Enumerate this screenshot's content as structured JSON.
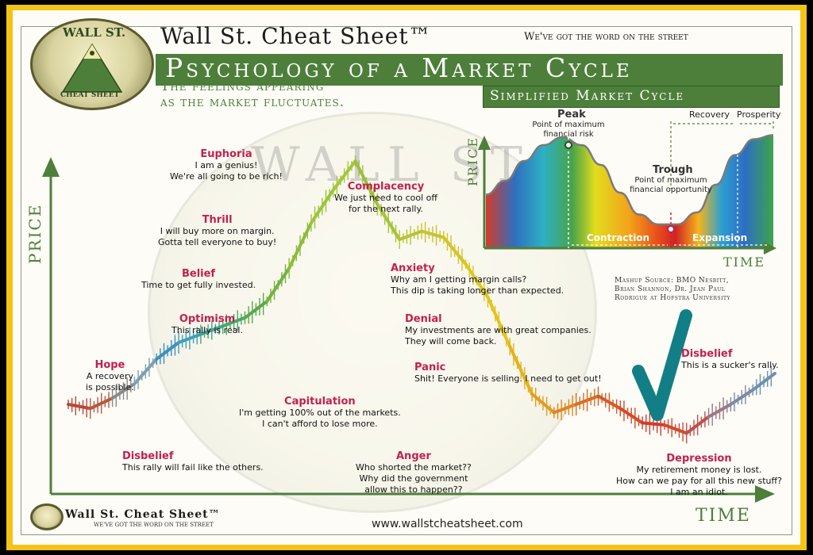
{
  "header": {
    "brand": "Wall St. Cheat Sheet™",
    "tagline": "We've got the word on the street",
    "title": "Psychology of a Market Cycle",
    "subtitle_line1": "The feelings appearing",
    "subtitle_line2": "as the market fluctuates.",
    "seal_top": "WALL ST.",
    "seal_bottom": "CHEAT SHEET"
  },
  "footer": {
    "brand": "Wall St. Cheat Sheet™",
    "tagline": "We've got the word on the street",
    "url": "www.wallstcheatsheet.com"
  },
  "watermark": {
    "text": "WALL ST."
  },
  "credit": {
    "line1": "Mashup Source: BMO Nesbitt,",
    "line2": "Brian Shannon, Dr. Jean Paul",
    "line3": "Rodrigue at Hofstra University"
  },
  "colors": {
    "brand_green": "#4d7f3a",
    "stage_title": "#c31f4f",
    "frame_yellow": "#f2c417",
    "checkmark": "#127f86"
  },
  "chart_data": [
    {
      "type": "line",
      "xlabel": "Time",
      "ylabel": "Price",
      "stages": [
        {
          "name": "Disbelief",
          "lines": [
            "This rally will fail like the others."
          ]
        },
        {
          "name": "Hope",
          "lines": [
            "A recovery",
            "is possible."
          ]
        },
        {
          "name": "Optimism",
          "lines": [
            "This rally is real."
          ]
        },
        {
          "name": "Belief",
          "lines": [
            "Time to get fully invested."
          ]
        },
        {
          "name": "Thrill",
          "lines": [
            "I will buy more on margin.",
            "Gotta tell everyone to buy!"
          ]
        },
        {
          "name": "Euphoria",
          "lines": [
            "I am a genius!",
            "We're all going to be rich!"
          ]
        },
        {
          "name": "Complacency",
          "lines": [
            "We just need to cool off",
            "for the next rally."
          ]
        },
        {
          "name": "Anxiety",
          "lines": [
            "Why am I getting margin calls?",
            "This dip is taking longer than expected."
          ]
        },
        {
          "name": "Denial",
          "lines": [
            "My investments are with great companies.",
            "They will come back."
          ]
        },
        {
          "name": "Panic",
          "lines": [
            "Shit! Everyone is selling. I need to get out!"
          ]
        },
        {
          "name": "Capitulation",
          "lines": [
            "I'm getting 100% out of the markets.",
            "I can't afford to lose more."
          ]
        },
        {
          "name": "Anger",
          "lines": [
            "Who shorted the market??",
            "Why did the government",
            "allow this to happen??"
          ]
        },
        {
          "name": "Depression",
          "lines": [
            "My retirement money is lost.",
            "How can we pay for all this new stuff?",
            "I am an idiot."
          ]
        },
        {
          "name": "Disbelief",
          "lines": [
            "This is a sucker's rally."
          ]
        }
      ],
      "price_path": [
        30,
        28,
        33,
        40,
        52,
        60,
        64,
        68,
        72,
        80,
        96,
        118,
        134,
        148,
        127,
        110,
        114,
        111,
        98,
        82,
        58,
        35,
        26,
        30,
        34,
        28,
        21,
        20,
        16,
        24,
        30,
        37,
        45
      ]
    },
    {
      "type": "area",
      "title": "Simplified Market Cycle",
      "xlabel": "Time",
      "ylabel": "Price",
      "points": [
        {
          "label": "Peak",
          "note": "Point of maximum financial risk"
        },
        {
          "label": "Trough",
          "note": "Point of maximum financial opportunity"
        }
      ],
      "phases": [
        "Contraction",
        "Expansion",
        "Recovery",
        "Prosperity"
      ],
      "curve": [
        38,
        52,
        72,
        88,
        96,
        88,
        68,
        40,
        18,
        8,
        8,
        20,
        48,
        78,
        94,
        98
      ]
    }
  ]
}
